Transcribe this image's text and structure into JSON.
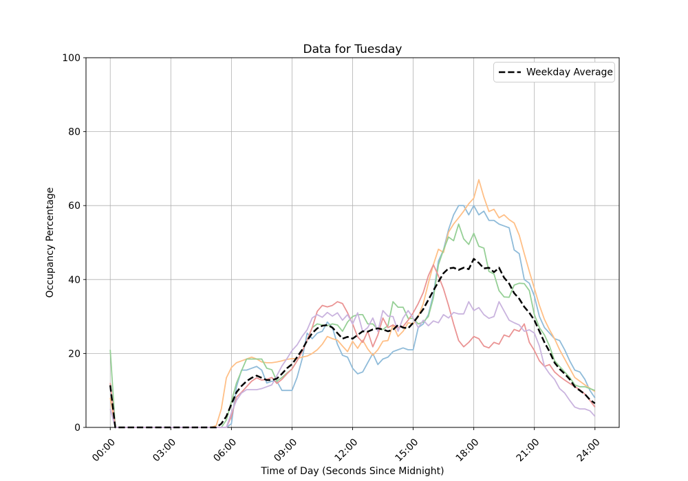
{
  "title": "Data for Tuesday",
  "legend": {
    "items": [
      {
        "label": "Weekday Average",
        "style": "dashed",
        "color": "#000000"
      }
    ]
  },
  "chart_data": {
    "type": "line",
    "title": "Data for Tuesday",
    "xlabel": "Time of Day (Seconds Since Midnight)",
    "ylabel": "Occupancy Percentage",
    "ylim": [
      0,
      100
    ],
    "xlim_seconds": [
      -4320,
      90720
    ],
    "grid": true,
    "legend_position": "upper right",
    "x_start_seconds": 0,
    "x_step_seconds": 900,
    "x_tick_seconds": [
      0,
      10800,
      21600,
      32400,
      43200,
      54000,
      64800,
      75600,
      86400
    ],
    "x_tick_labels": [
      "00:00",
      "03:00",
      "06:00",
      "09:00",
      "12:00",
      "15:00",
      "18:00",
      "21:00",
      "24:00"
    ],
    "y_ticks": [
      0,
      20,
      40,
      60,
      80,
      100
    ],
    "series": [
      {
        "name": "series-1",
        "base_color": "#1f77b4",
        "alpha": 0.5,
        "color": "#8fbbd9",
        "width": 1.8,
        "dash": null,
        "in_legend": false,
        "values": [
          11,
          0,
          0,
          0,
          0,
          0,
          0,
          0,
          0,
          0,
          0,
          0,
          0,
          0,
          0,
          0,
          0,
          0,
          0,
          0,
          0,
          0,
          0,
          0,
          1,
          11,
          15.5,
          15.5,
          16,
          16.5,
          15.5,
          12,
          12.5,
          12.5,
          10,
          10,
          10,
          13.5,
          18.5,
          25.5,
          24,
          25.5,
          26,
          28.5,
          27,
          22.5,
          19.5,
          19,
          16,
          14.5,
          15,
          17.5,
          20,
          17,
          18.5,
          19,
          20.5,
          21,
          21.5,
          21,
          21,
          27,
          28,
          30.5,
          36,
          45,
          48,
          53.5,
          57.5,
          60,
          60,
          57.5,
          60,
          57.5,
          58.5,
          56,
          56,
          55,
          54.5,
          54,
          48,
          47,
          40,
          39,
          35.5,
          30,
          27,
          25.5,
          24,
          23.5,
          21,
          18,
          15.5,
          15,
          13,
          10,
          8
        ]
      },
      {
        "name": "series-2",
        "base_color": "#ff7f0e",
        "alpha": 0.5,
        "color": "#ffbf86",
        "width": 1.8,
        "dash": null,
        "in_legend": false,
        "values": [
          8,
          0,
          0,
          0,
          0,
          0,
          0,
          0,
          0,
          0,
          0,
          0,
          0,
          0,
          0,
          0,
          0,
          0,
          0,
          0,
          0,
          0.5,
          5,
          13.4,
          16.2,
          17.5,
          18,
          18.5,
          19,
          18.5,
          17.7,
          17.5,
          17.5,
          17.7,
          18,
          18.4,
          18.6,
          18.6,
          19,
          19.3,
          20,
          21,
          22.5,
          24.6,
          24,
          23.6,
          22,
          20.5,
          23.3,
          21.4,
          23.6,
          21.2,
          19.5,
          21,
          23.3,
          23.5,
          27.7,
          24.6,
          26,
          28.3,
          28,
          30,
          33.5,
          39,
          44,
          48.2,
          47.3,
          52.8,
          55,
          56.7,
          58.5,
          60.5,
          62,
          67,
          62.3,
          58.4,
          59,
          56.7,
          57.5,
          56.2,
          55.3,
          52,
          47,
          42.2,
          37.6,
          33,
          29.2,
          26.4,
          24,
          21,
          18.5,
          16,
          13.5,
          12.5,
          11.5,
          10.6,
          9.7
        ]
      },
      {
        "name": "series-3",
        "base_color": "#2ca02c",
        "alpha": 0.5,
        "color": "#95cf95",
        "width": 1.8,
        "dash": null,
        "in_legend": false,
        "values": [
          21,
          0,
          0,
          0,
          0,
          0,
          0,
          0,
          0,
          0,
          0,
          0,
          0,
          0,
          0,
          0,
          0,
          0,
          0,
          0,
          0,
          0,
          0,
          2,
          7,
          12,
          15.3,
          18.5,
          18.5,
          18.5,
          18.5,
          16,
          15.6,
          12.5,
          13.5,
          14.7,
          15.8,
          18,
          20.5,
          23.6,
          27,
          28,
          27.7,
          27.5,
          28,
          27.7,
          26,
          28.5,
          30,
          30.5,
          30.5,
          28,
          28,
          26.5,
          26.5,
          27.5,
          34,
          32.5,
          32.5,
          29.5,
          29.5,
          28,
          28.5,
          30,
          35,
          44,
          48,
          51.5,
          50.5,
          55,
          51,
          49.5,
          52.5,
          49,
          48.5,
          42.2,
          41.5,
          37,
          35.3,
          35.2,
          38.5,
          39,
          38.9,
          37,
          30.5,
          27,
          25,
          22,
          18,
          16.5,
          15,
          13.5,
          11.5,
          11,
          11,
          10.5,
          10
        ]
      },
      {
        "name": "series-4",
        "base_color": "#d62728",
        "alpha": 0.5,
        "color": "#ea9393",
        "width": 1.8,
        "dash": null,
        "in_legend": false,
        "values": [
          12,
          0,
          0,
          0,
          0,
          0,
          0,
          0,
          0,
          0,
          0,
          0,
          0,
          0,
          0,
          0,
          0,
          0,
          0,
          0,
          0,
          0,
          0,
          0,
          3,
          8.2,
          9.5,
          11,
          12.5,
          13.4,
          12.8,
          13,
          13.5,
          11.9,
          13,
          14.5,
          15.8,
          18,
          20.5,
          23.6,
          27,
          31.4,
          33,
          32.6,
          33,
          34,
          33.5,
          31,
          28,
          24.5,
          23,
          26,
          21.8,
          25,
          29.6,
          27,
          27.7,
          27,
          27.3,
          29,
          31,
          33.5,
          36.5,
          41,
          44,
          41,
          37.5,
          33,
          28,
          23.5,
          21.8,
          23,
          24.6,
          24,
          22,
          21.5,
          23,
          22.5,
          25,
          24.5,
          26.5,
          26,
          28,
          23,
          20.8,
          18,
          16.5,
          17,
          15,
          13.8,
          12.8,
          11.9,
          11,
          10.2,
          9,
          7.3,
          5.5
        ]
      },
      {
        "name": "series-5",
        "base_color": "#9467bd",
        "alpha": 0.5,
        "color": "#c9b3de",
        "width": 1.8,
        "dash": null,
        "in_legend": false,
        "values": [
          5,
          0,
          0,
          0,
          0,
          0,
          0,
          0,
          0,
          0,
          0,
          0,
          0,
          0,
          0,
          0,
          0,
          0,
          0,
          0,
          0,
          0,
          0,
          0,
          4,
          7.3,
          9.3,
          10.2,
          10.2,
          10.2,
          10.5,
          11,
          11.5,
          14,
          16.6,
          18.6,
          20.8,
          22.3,
          24.6,
          26.4,
          29.6,
          30.5,
          29.8,
          31.1,
          30.1,
          31,
          29,
          30.5,
          28,
          31,
          25.9,
          27,
          29.6,
          26,
          31.6,
          30.1,
          30,
          26,
          29.6,
          31.6,
          29.6,
          27,
          29,
          27.5,
          28.8,
          28.3,
          30.5,
          29.6,
          31.1,
          30.7,
          30.7,
          34,
          31.6,
          32.4,
          30.5,
          29.5,
          30,
          34,
          31.5,
          29,
          28.3,
          27.7,
          26,
          26.4,
          25.5,
          22,
          16.5,
          14.5,
          13,
          10.5,
          9.3,
          7.3,
          5.5,
          5,
          5,
          4.5,
          3
        ]
      },
      {
        "name": "Weekday Average",
        "base_color": "#000000",
        "alpha": 1,
        "color": "#000000",
        "width": 2.5,
        "dash": "9.3 4",
        "in_legend": true,
        "values": [
          11.4,
          0,
          0,
          0,
          0,
          0,
          0,
          0,
          0,
          0,
          0,
          0,
          0,
          0,
          0,
          0,
          0,
          0,
          0,
          0,
          0,
          0,
          1,
          3,
          6.3,
          9.5,
          11.2,
          12.5,
          13.4,
          14,
          13.4,
          12.8,
          12.8,
          13.2,
          14.5,
          16,
          17.1,
          19,
          21,
          23.5,
          25.5,
          26.8,
          27.5,
          27.7,
          27,
          25.5,
          24,
          24.5,
          24,
          25,
          26,
          25.9,
          26.5,
          26.8,
          26.5,
          26,
          26.4,
          27.7,
          27,
          26.8,
          28.3,
          30.1,
          32,
          34.5,
          37,
          39.4,
          41.7,
          43,
          43.2,
          42.6,
          43.2,
          42.8,
          45.6,
          44.5,
          43,
          43.2,
          42,
          43.2,
          40.5,
          38.9,
          36.3,
          34.8,
          32.6,
          31,
          29,
          26,
          23,
          20.5,
          17.5,
          15.8,
          14.5,
          13,
          11,
          10,
          9,
          7.5,
          6.5
        ]
      }
    ]
  }
}
